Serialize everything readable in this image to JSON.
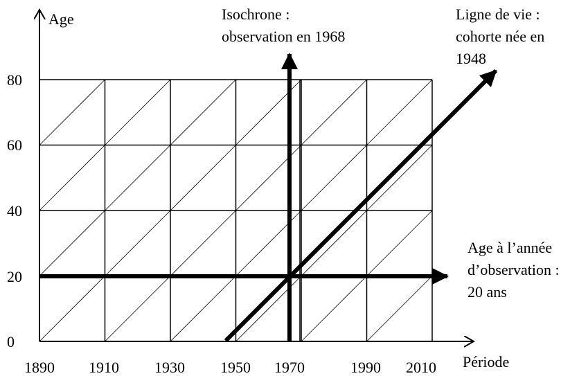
{
  "axes": {
    "y_title": "Age",
    "x_title": "Période",
    "y_ticks": [
      0,
      20,
      40,
      60,
      80
    ],
    "x_ticks": [
      1890,
      1910,
      1930,
      1950,
      1970,
      1990,
      2010
    ]
  },
  "annotations": {
    "isochrone": [
      "Isochrone :",
      "observation en 1968"
    ],
    "lifeline": [
      "Ligne de vie :",
      "cohorte née en",
      "1948"
    ],
    "age": [
      "Age à l’année",
      "d’observation :",
      "20 ans"
    ]
  }
}
